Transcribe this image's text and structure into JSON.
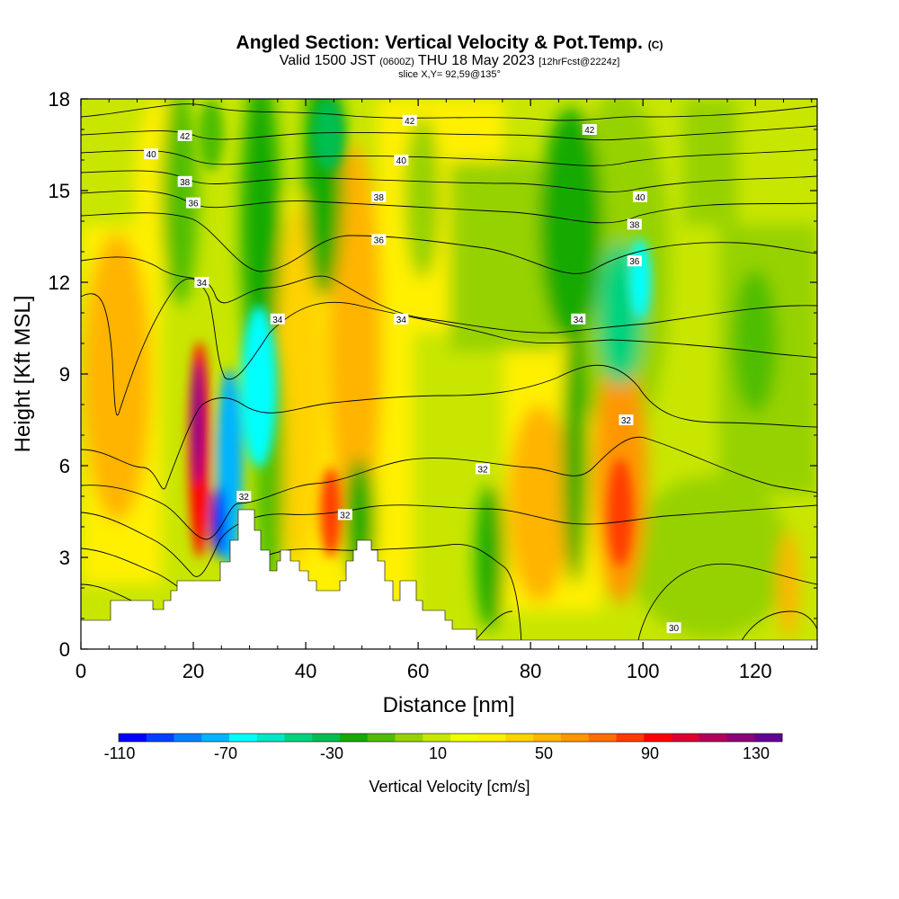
{
  "header": {
    "title": "Angled Section: Vertical Velocity & Pot.Temp.",
    "title_mark": "(C)",
    "line2_a": "Valid 1500 JST",
    "line2_b": "(0600Z)",
    "line2_c": "THU 18 May 2023",
    "line2_d": "[12hrFcst@2224z]",
    "line3": "slice X,Y= 92,59@135°"
  },
  "chart_data": {
    "type": "heatmap",
    "title": "Angled Section: Vertical Velocity & Pot.Temp.",
    "xlabel": "Distance [nm]",
    "ylabel": "Height [Kft MSL]",
    "xlim": [
      0,
      131
    ],
    "ylim": [
      0,
      18
    ],
    "x_ticks": [
      0,
      20,
      40,
      60,
      80,
      100,
      120
    ],
    "y_ticks": [
      0,
      3,
      6,
      9,
      12,
      15,
      18
    ],
    "colorbar": {
      "label": "Vertical Velocity [cm/s]",
      "tick_labels": [
        "-110",
        "-70",
        "-30",
        "10",
        "50",
        "90",
        "130"
      ],
      "colors": [
        "#0000ff",
        "#0040ff",
        "#0080ff",
        "#00b4ff",
        "#00ffff",
        "#00e6c8",
        "#00d27d",
        "#00be50",
        "#14aa00",
        "#50be00",
        "#96d200",
        "#c8e600",
        "#f0ff00",
        "#fff000",
        "#ffd200",
        "#ffb400",
        "#ff9600",
        "#ff6e00",
        "#ff3c00",
        "#ff0000",
        "#dc0032",
        "#b4005a",
        "#8c0078",
        "#640096"
      ]
    },
    "contour_labels": [
      {
        "value": "42",
        "x": 18.5,
        "y": 16.8
      },
      {
        "value": "42",
        "x": 58.5,
        "y": 17.3
      },
      {
        "value": "42",
        "x": 90.5,
        "y": 17.0
      },
      {
        "value": "40",
        "x": 12.5,
        "y": 16.2
      },
      {
        "value": "40",
        "x": 57.0,
        "y": 16.0
      },
      {
        "value": "40",
        "x": 99.5,
        "y": 14.8
      },
      {
        "value": "38",
        "x": 18.5,
        "y": 15.3
      },
      {
        "value": "38",
        "x": 53.0,
        "y": 14.8
      },
      {
        "value": "38",
        "x": 98.5,
        "y": 13.9
      },
      {
        "value": "36",
        "x": 20.0,
        "y": 14.6
      },
      {
        "value": "36",
        "x": 53.0,
        "y": 13.4
      },
      {
        "value": "36",
        "x": 98.5,
        "y": 12.7
      },
      {
        "value": "34",
        "x": 21.5,
        "y": 12.0
      },
      {
        "value": "34",
        "x": 35.0,
        "y": 10.8
      },
      {
        "value": "34",
        "x": 57.0,
        "y": 10.8
      },
      {
        "value": "34",
        "x": 88.5,
        "y": 10.8
      },
      {
        "value": "32",
        "x": 29.0,
        "y": 5.0
      },
      {
        "value": "32",
        "x": 47.0,
        "y": 4.4
      },
      {
        "value": "32",
        "x": 71.5,
        "y": 5.9
      },
      {
        "value": "32",
        "x": 97.0,
        "y": 7.5
      },
      {
        "value": "30",
        "x": 105.5,
        "y": 0.7
      }
    ],
    "velocity_cells": [
      {
        "x": 21.5,
        "y": 7.0,
        "v": 130
      },
      {
        "x": 21.5,
        "y": 5.5,
        "v": 120
      },
      {
        "x": 25.0,
        "y": 4.5,
        "v": -110
      },
      {
        "x": 26.0,
        "y": 8.5,
        "v": -70
      },
      {
        "x": 33.0,
        "y": 10.5,
        "v": -70
      },
      {
        "x": 44.5,
        "y": 5.5,
        "v": 90
      },
      {
        "x": 7.0,
        "y": 9.5,
        "v": 50
      },
      {
        "x": 82.0,
        "y": 4.5,
        "v": 50
      },
      {
        "x": 96.5,
        "y": 5.0,
        "v": 90
      },
      {
        "x": 98.0,
        "y": 12.0,
        "v": -70
      },
      {
        "x": 88.0,
        "y": 8.0,
        "v": -30
      },
      {
        "x": 70.0,
        "y": 2.5,
        "v": -30
      },
      {
        "x": 127.0,
        "y": 2.5,
        "v": 50
      },
      {
        "x": 60.0,
        "y": 13.0,
        "v": 10
      }
    ]
  }
}
